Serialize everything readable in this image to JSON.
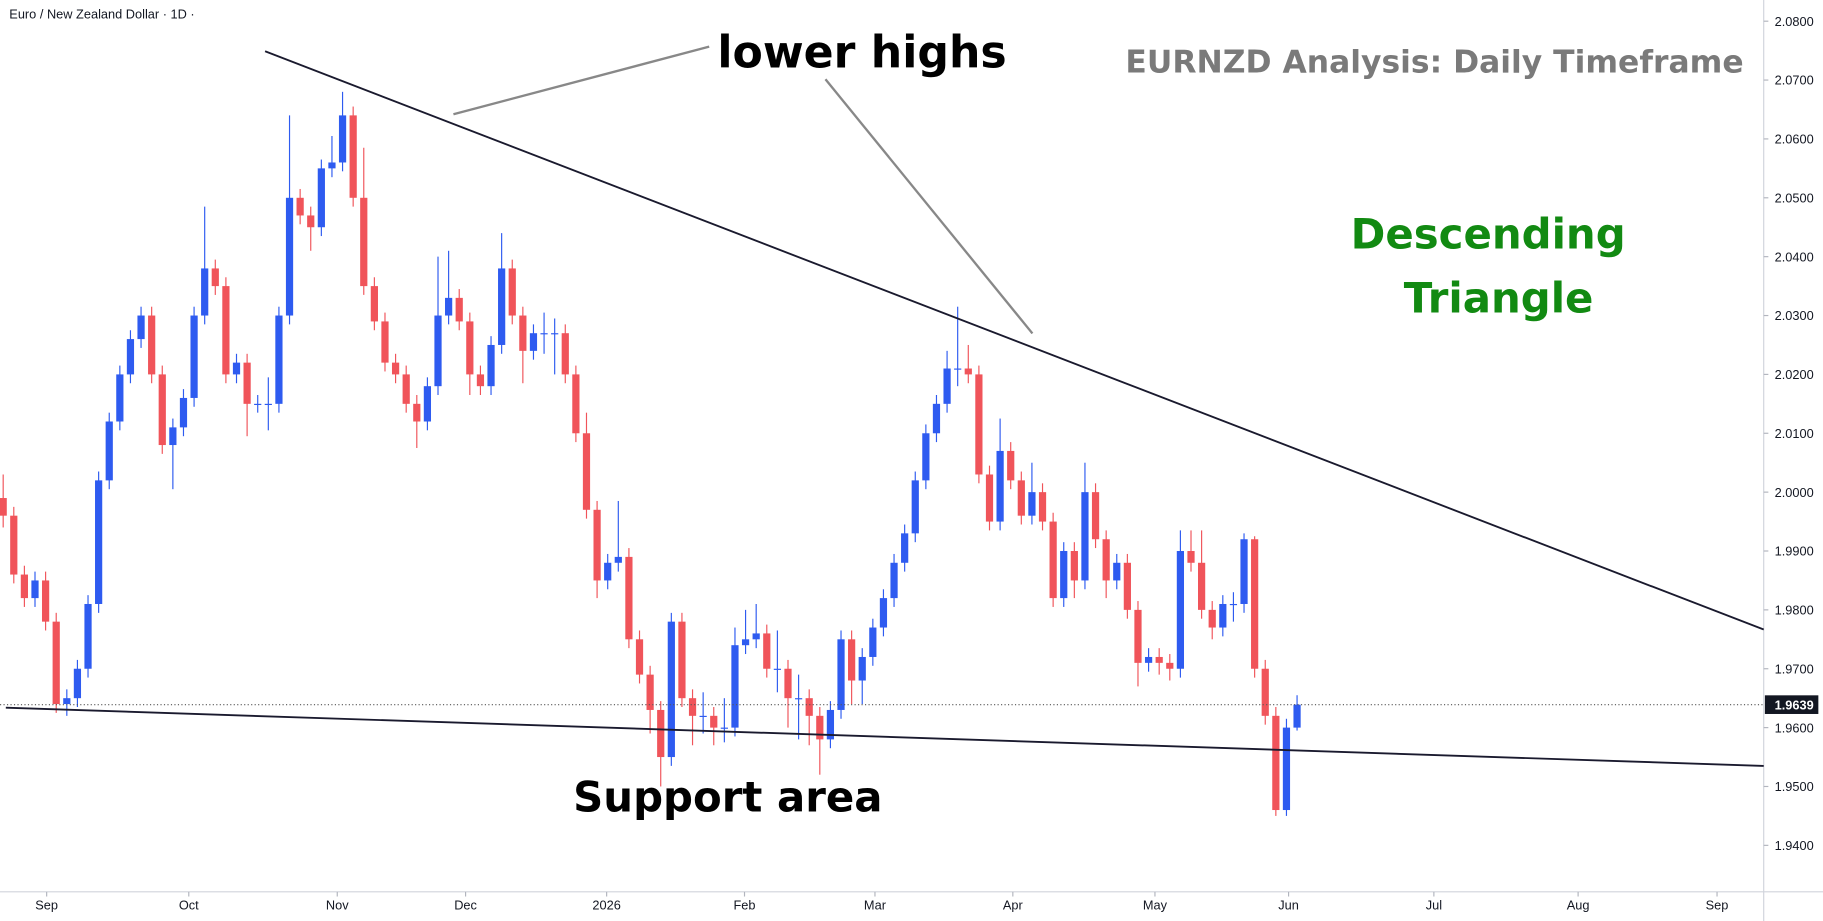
{
  "chart_data": {
    "type": "candlestick",
    "title": "Euro / New Zealand Dollar · 1D ·",
    "annotations": {
      "heading": "EURNZD Analysis: Daily Timeframe",
      "pattern": [
        "Descending",
        "Triangle"
      ],
      "highs": "lower highs",
      "support": "Support area"
    },
    "up_color": "#2e5bf0",
    "down_color": "#f0545a",
    "grid": false,
    "ylim": [
      1.9321,
      2.0836
    ],
    "yticks": [
      {
        "value": 1.94,
        "label": "1.9400"
      },
      {
        "value": 1.95,
        "label": "1.9500"
      },
      {
        "value": 1.96,
        "label": "1.9600"
      },
      {
        "value": 1.97,
        "label": "1.9700"
      },
      {
        "value": 1.98,
        "label": "1.9800"
      },
      {
        "value": 1.99,
        "label": "1.9900"
      },
      {
        "value": 2.0,
        "label": "2.0000"
      },
      {
        "value": 2.01,
        "label": "2.0100"
      },
      {
        "value": 2.02,
        "label": "2.0200"
      },
      {
        "value": 2.03,
        "label": "2.0300"
      },
      {
        "value": 2.04,
        "label": "2.0400"
      },
      {
        "value": 2.05,
        "label": "2.0500"
      },
      {
        "value": 2.06,
        "label": "2.0600"
      },
      {
        "value": 2.07,
        "label": "2.0700"
      },
      {
        "value": 2.08,
        "label": "2.0800"
      }
    ],
    "xlim": [
      -0.3,
      166
    ],
    "xticks": [
      {
        "value": 4.1,
        "label": "Sep"
      },
      {
        "value": 17.5,
        "label": "Oct"
      },
      {
        "value": 31.5,
        "label": "Nov"
      },
      {
        "value": 43.6,
        "label": "Dec"
      },
      {
        "value": 56.9,
        "label": "2026"
      },
      {
        "value": 69.9,
        "label": "Feb"
      },
      {
        "value": 82.2,
        "label": "Mar"
      },
      {
        "value": 95.2,
        "label": "Apr"
      },
      {
        "value": 108.6,
        "label": "May"
      },
      {
        "value": 121.2,
        "label": "Jun"
      },
      {
        "value": 134.9,
        "label": "Jul"
      },
      {
        "value": 148.5,
        "label": "Aug"
      },
      {
        "value": 161.6,
        "label": "Sep"
      }
    ],
    "ohlc": [
      [
        1.999,
        2.003,
        1.994,
        1.996
      ],
      [
        1.996,
        1.9975,
        1.9845,
        1.986
      ],
      [
        1.986,
        1.9875,
        1.9805,
        1.982
      ],
      [
        1.982,
        1.9865,
        1.9805,
        1.985
      ],
      [
        1.985,
        1.9865,
        1.9765,
        1.978
      ],
      [
        1.978,
        1.9795,
        1.9625,
        1.964
      ],
      [
        1.964,
        1.9665,
        1.962,
        1.965
      ],
      [
        1.965,
        1.9715,
        1.9635,
        1.97
      ],
      [
        1.97,
        1.9825,
        1.9685,
        1.981
      ],
      [
        1.981,
        2.0035,
        1.9795,
        2.002
      ],
      [
        2.002,
        2.0135,
        2.0005,
        2.012
      ],
      [
        2.012,
        2.0215,
        2.0105,
        2.02
      ],
      [
        2.02,
        2.0275,
        2.0185,
        2.026
      ],
      [
        2.026,
        2.0315,
        2.0245,
        2.03
      ],
      [
        2.03,
        2.0315,
        2.0185,
        2.02
      ],
      [
        2.02,
        2.0215,
        2.0065,
        2.008
      ],
      [
        2.008,
        2.0125,
        2.0005,
        2.011
      ],
      [
        2.011,
        2.0175,
        2.0095,
        2.016
      ],
      [
        2.016,
        2.0315,
        2.0145,
        2.03
      ],
      [
        2.03,
        2.0485,
        2.0285,
        2.038
      ],
      [
        2.038,
        2.0395,
        2.0335,
        2.035
      ],
      [
        2.035,
        2.0365,
        2.0185,
        2.02
      ],
      [
        2.02,
        2.0235,
        2.0185,
        2.022
      ],
      [
        2.022,
        2.0235,
        2.0095,
        2.015
      ],
      [
        2.015,
        2.0165,
        2.0135,
        2.015
      ],
      [
        2.015,
        2.0195,
        2.0105,
        2.015
      ],
      [
        2.015,
        2.0315,
        2.0135,
        2.03
      ],
      [
        2.03,
        2.064,
        2.0285,
        2.05
      ],
      [
        2.05,
        2.0515,
        2.0455,
        2.047
      ],
      [
        2.047,
        2.0485,
        2.041,
        2.045
      ],
      [
        2.045,
        2.0565,
        2.0435,
        2.055
      ],
      [
        2.055,
        2.0605,
        2.0535,
        2.056
      ],
      [
        2.056,
        2.068,
        2.0545,
        2.064
      ],
      [
        2.064,
        2.0655,
        2.0485,
        2.05
      ],
      [
        2.05,
        2.0585,
        2.0335,
        2.035
      ],
      [
        2.035,
        2.0365,
        2.0275,
        2.029
      ],
      [
        2.029,
        2.0305,
        2.0205,
        2.022
      ],
      [
        2.022,
        2.0235,
        2.0185,
        2.02
      ],
      [
        2.02,
        2.0215,
        2.0135,
        2.015
      ],
      [
        2.015,
        2.0165,
        2.0075,
        2.012
      ],
      [
        2.012,
        2.0195,
        2.0105,
        2.018
      ],
      [
        2.018,
        2.04,
        2.0165,
        2.03
      ],
      [
        2.03,
        2.041,
        2.0285,
        2.033
      ],
      [
        2.033,
        2.0345,
        2.0275,
        2.029
      ],
      [
        2.029,
        2.0305,
        2.0165,
        2.02
      ],
      [
        2.02,
        2.0215,
        2.0165,
        2.018
      ],
      [
        2.018,
        2.0265,
        2.0165,
        2.025
      ],
      [
        2.025,
        2.044,
        2.0235,
        2.038
      ],
      [
        2.038,
        2.0395,
        2.0285,
        2.03
      ],
      [
        2.03,
        2.0315,
        2.0185,
        2.024
      ],
      [
        2.024,
        2.0285,
        2.0225,
        2.027
      ],
      [
        2.027,
        2.0305,
        2.0235,
        2.027
      ],
      [
        2.027,
        2.0295,
        2.02,
        2.027
      ],
      [
        2.027,
        2.0285,
        2.0185,
        2.02
      ],
      [
        2.02,
        2.0215,
        2.0085,
        2.01
      ],
      [
        2.01,
        2.0135,
        1.9955,
        1.997
      ],
      [
        1.997,
        1.9985,
        1.982,
        1.985
      ],
      [
        1.985,
        1.9895,
        1.9835,
        1.988
      ],
      [
        1.988,
        1.9985,
        1.9865,
        1.989
      ],
      [
        1.989,
        1.9905,
        1.9735,
        1.975
      ],
      [
        1.975,
        1.9765,
        1.9675,
        1.969
      ],
      [
        1.969,
        1.9705,
        1.959,
        1.963
      ],
      [
        1.963,
        1.9645,
        1.95,
        1.955
      ],
      [
        1.955,
        1.9795,
        1.9535,
        1.978
      ],
      [
        1.978,
        1.9795,
        1.9635,
        1.965
      ],
      [
        1.965,
        1.9665,
        1.957,
        1.962
      ],
      [
        1.962,
        1.966,
        1.959,
        1.962
      ],
      [
        1.962,
        1.9635,
        1.957,
        1.96
      ],
      [
        1.96,
        1.965,
        1.9575,
        1.96
      ],
      [
        1.96,
        1.977,
        1.9585,
        1.974
      ],
      [
        1.974,
        1.98,
        1.9725,
        1.975
      ],
      [
        1.975,
        1.981,
        1.9735,
        1.976
      ],
      [
        1.976,
        1.9775,
        1.9685,
        1.97
      ],
      [
        1.97,
        1.9765,
        1.966,
        1.97
      ],
      [
        1.97,
        1.9715,
        1.96,
        1.965
      ],
      [
        1.965,
        1.969,
        1.958,
        1.965
      ],
      [
        1.965,
        1.9665,
        1.957,
        1.962
      ],
      [
        1.962,
        1.9635,
        1.952,
        1.958
      ],
      [
        1.958,
        1.9645,
        1.9565,
        1.963
      ],
      [
        1.963,
        1.9765,
        1.9615,
        1.975
      ],
      [
        1.975,
        1.9765,
        1.964,
        1.968
      ],
      [
        1.968,
        1.9735,
        1.964,
        1.972
      ],
      [
        1.972,
        1.9785,
        1.9705,
        1.977
      ],
      [
        1.977,
        1.9835,
        1.9755,
        1.982
      ],
      [
        1.982,
        1.9895,
        1.9805,
        1.988
      ],
      [
        1.988,
        1.9945,
        1.9865,
        1.993
      ],
      [
        1.993,
        2.0035,
        1.9915,
        2.002
      ],
      [
        2.002,
        2.0115,
        2.0005,
        2.01
      ],
      [
        2.01,
        2.0165,
        2.0085,
        2.015
      ],
      [
        2.015,
        2.024,
        2.0135,
        2.021
      ],
      [
        2.021,
        2.0315,
        2.018,
        2.021
      ],
      [
        2.021,
        2.025,
        2.0185,
        2.02
      ],
      [
        2.02,
        2.0215,
        2.0015,
        2.003
      ],
      [
        2.003,
        2.0045,
        1.9935,
        1.995
      ],
      [
        1.995,
        2.0125,
        1.9935,
        2.007
      ],
      [
        2.007,
        2.0085,
        2.0005,
        2.002
      ],
      [
        2.002,
        2.0035,
        1.9945,
        1.996
      ],
      [
        1.996,
        2.005,
        1.9945,
        2.0
      ],
      [
        2.0,
        2.0015,
        1.9935,
        1.995
      ],
      [
        1.995,
        1.9965,
        1.9805,
        1.982
      ],
      [
        1.982,
        1.9915,
        1.9805,
        1.99
      ],
      [
        1.99,
        1.9915,
        1.982,
        1.985
      ],
      [
        1.985,
        2.005,
        1.9835,
        2.0
      ],
      [
        2.0,
        2.0015,
        1.9905,
        1.992
      ],
      [
        1.992,
        1.9935,
        1.982,
        1.985
      ],
      [
        1.985,
        1.9895,
        1.9835,
        1.988
      ],
      [
        1.988,
        1.9895,
        1.9785,
        1.98
      ],
      [
        1.98,
        1.9815,
        1.967,
        1.971
      ],
      [
        1.971,
        1.9735,
        1.9695,
        1.972
      ],
      [
        1.972,
        1.9735,
        1.969,
        1.971
      ],
      [
        1.971,
        1.9725,
        1.968,
        1.97
      ],
      [
        1.97,
        1.9935,
        1.9685,
        1.99
      ],
      [
        1.99,
        1.9935,
        1.9865,
        1.988
      ],
      [
        1.988,
        1.9935,
        1.9785,
        1.98
      ],
      [
        1.98,
        1.9815,
        1.975,
        1.977
      ],
      [
        1.977,
        1.9825,
        1.9755,
        1.981
      ],
      [
        1.981,
        1.983,
        1.978,
        1.981
      ],
      [
        1.981,
        1.993,
        1.9795,
        1.992
      ],
      [
        1.992,
        1.9925,
        1.9685,
        1.97
      ],
      [
        1.97,
        1.9715,
        1.9605,
        1.962
      ],
      [
        1.962,
        1.9635,
        1.945,
        1.946
      ],
      [
        1.946,
        1.9615,
        1.945,
        1.96
      ],
      [
        1.96,
        1.9655,
        1.9595,
        1.9639
      ]
    ]
  }
}
